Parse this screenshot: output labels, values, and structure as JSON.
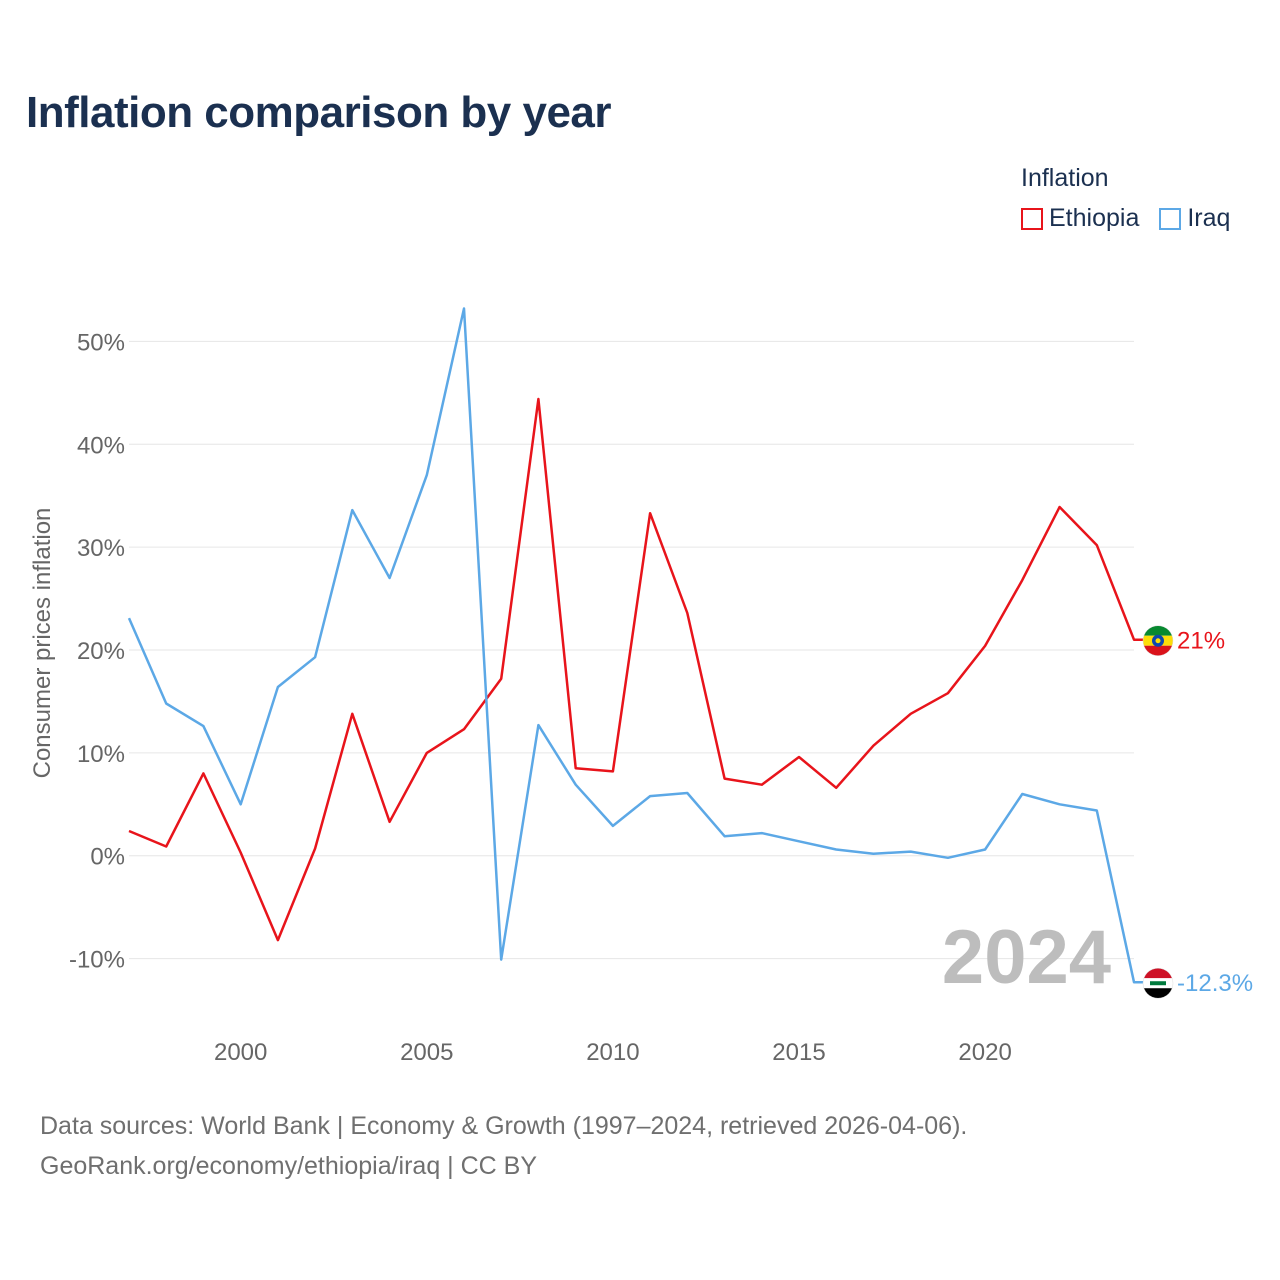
{
  "title": "Inflation comparison by year",
  "legend": {
    "title": "Inflation",
    "items": [
      {
        "name": "Ethiopia",
        "color": "#e8141b"
      },
      {
        "name": "Iraq",
        "color": "#5ca8e6"
      }
    ]
  },
  "chart_data": {
    "type": "line",
    "title": "Inflation comparison by year",
    "xlabel": "",
    "ylabel": "Consumer prices inflation",
    "x": [
      1997,
      1998,
      1999,
      2000,
      2001,
      2002,
      2003,
      2004,
      2005,
      2006,
      2007,
      2008,
      2009,
      2010,
      2011,
      2012,
      2013,
      2014,
      2015,
      2016,
      2017,
      2018,
      2019,
      2020,
      2021,
      2022,
      2023,
      2024
    ],
    "series": [
      {
        "name": "Ethiopia",
        "color": "#e8141b",
        "end_label": "21%",
        "values": [
          2.4,
          0.9,
          8.0,
          0.3,
          -8.2,
          0.7,
          13.8,
          3.3,
          10.0,
          12.3,
          17.2,
          44.4,
          8.5,
          8.2,
          33.3,
          23.6,
          7.5,
          6.9,
          9.6,
          6.6,
          10.7,
          13.8,
          15.8,
          20.4,
          26.8,
          33.9,
          30.2,
          21.0
        ]
      },
      {
        "name": "Iraq",
        "color": "#5ca8e6",
        "end_label": "-12.3%",
        "values": [
          23.1,
          14.8,
          12.6,
          5.0,
          16.4,
          19.3,
          33.6,
          27.0,
          37.0,
          53.2,
          -10.1,
          12.7,
          6.9,
          2.9,
          5.8,
          6.1,
          1.9,
          2.2,
          1.4,
          0.6,
          0.2,
          0.4,
          -0.2,
          0.6,
          6.0,
          5.0,
          4.4,
          -12.3
        ]
      }
    ],
    "xticks": [
      2000,
      2005,
      2010,
      2015,
      2020
    ],
    "yticks": [
      -10,
      0,
      10,
      20,
      30,
      40,
      50
    ],
    "ytick_labels": [
      "-10%",
      "0%",
      "10%",
      "20%",
      "30%",
      "40%",
      "50%"
    ],
    "xlim": [
      1997,
      2024
    ],
    "ylim": [
      -15,
      55
    ],
    "grid": true,
    "watermark_year": "2024"
  },
  "footer": {
    "line1": "Data sources: World Bank | Economy & Growth (1997–2024, retrieved 2026-04-06).",
    "line2": "GeoRank.org/economy/ethiopia/iraq | CC BY"
  }
}
